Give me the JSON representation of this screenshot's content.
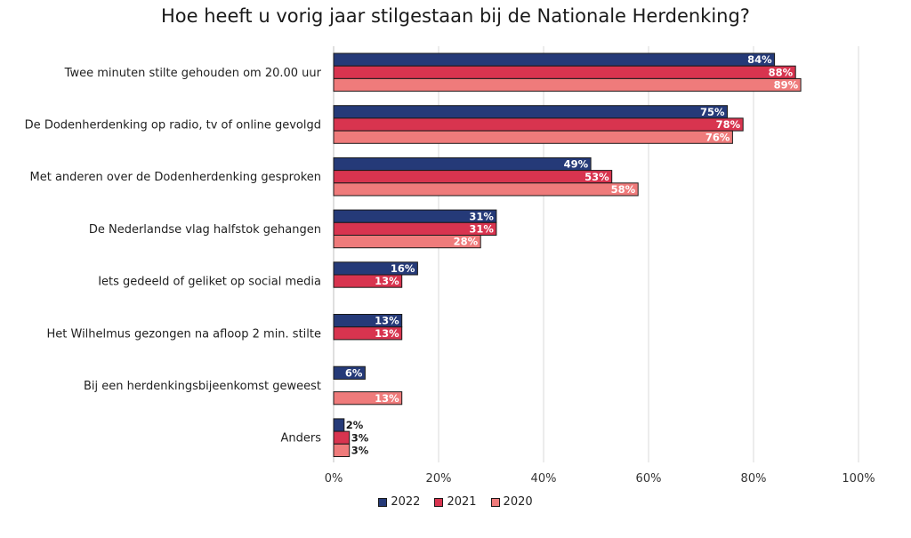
{
  "chart_data": {
    "type": "bar",
    "orientation": "horizontal",
    "title": "Hoe heeft u vorig jaar stilgestaan bij de Nationale Herdenking?",
    "xlim": [
      0,
      100
    ],
    "x_ticks": [
      "0%",
      "20%",
      "40%",
      "60%",
      "80%",
      "100%"
    ],
    "grid": true,
    "legend_position": "bottom",
    "categories": [
      "Twee minuten stilte gehouden om 20.00 uur",
      "De Dodenherdenking op radio, tv of online gevolgd",
      "Met anderen over de Dodenherdenking gesproken",
      "De Nederlandse vlag halfstok gehangen",
      "Iets gedeeld of geliket op social media",
      "Het Wilhelmus gezongen na afloop 2 min. stilte",
      "Bij een herdenkingsbijeenkomst geweest",
      "Anders"
    ],
    "series": [
      {
        "name": "2022",
        "color": "#253a78",
        "values": [
          84,
          75,
          49,
          31,
          16,
          13,
          6,
          2
        ],
        "labels": [
          "84%",
          "75%",
          "49%",
          "31%",
          "16%",
          "13%",
          "6%",
          "2%"
        ]
      },
      {
        "name": "2021",
        "color": "#d8344f",
        "values": [
          88,
          78,
          53,
          31,
          13,
          13,
          null,
          3
        ],
        "labels": [
          "88%",
          "78%",
          "53%",
          "31%",
          "13%",
          "13%",
          "",
          "3%"
        ]
      },
      {
        "name": "2020",
        "color": "#ef7b7b",
        "values": [
          89,
          76,
          58,
          28,
          null,
          null,
          13,
          3
        ],
        "labels": [
          "89%",
          "76%",
          "58%",
          "28%",
          "",
          "",
          "13%",
          "3%"
        ]
      }
    ]
  }
}
